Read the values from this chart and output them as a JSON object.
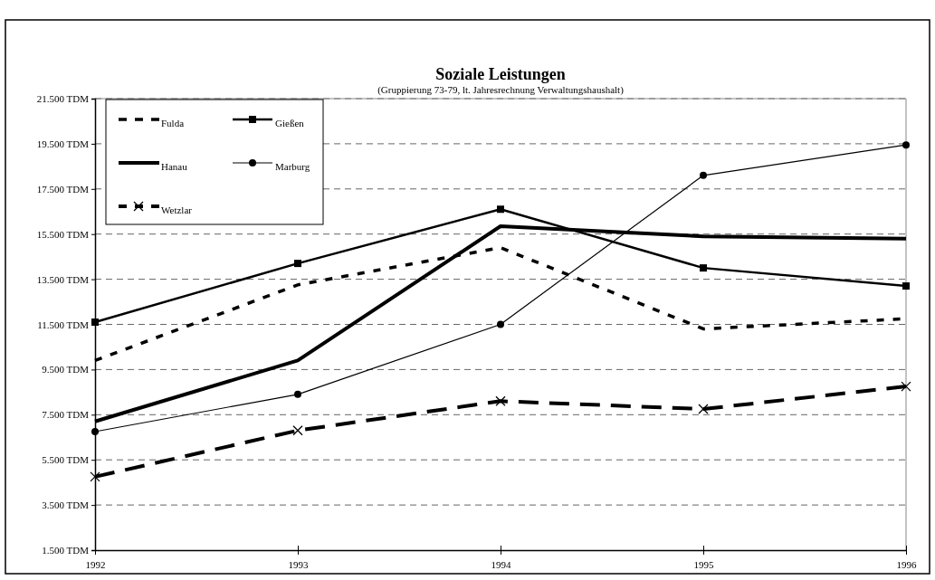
{
  "chart_data": {
    "type": "line",
    "title": "Soziale Leistungen",
    "subtitle": "(Gruppierung 73-79, lt. Jahresrechnung Verwaltungshaushalt)",
    "x": [
      1992,
      1993,
      1994,
      1995,
      1996
    ],
    "xlim": [
      1992,
      1996
    ],
    "xticks": [
      1992,
      1993,
      1994,
      1995,
      1996
    ],
    "ylim": [
      1500,
      21500
    ],
    "yticks": [
      {
        "value": 1500,
        "label": "1.500 TDM"
      },
      {
        "value": 3500,
        "label": "3.500 TDM"
      },
      {
        "value": 5500,
        "label": "5.500 TDM"
      },
      {
        "value": 7500,
        "label": "7.500 TDM"
      },
      {
        "value": 9500,
        "label": "9.500 TDM"
      },
      {
        "value": 11500,
        "label": "11.500 TDM"
      },
      {
        "value": 13500,
        "label": "13.500 TDM"
      },
      {
        "value": 15500,
        "label": "15.500 TDM"
      },
      {
        "value": 17500,
        "label": "17.500 TDM"
      },
      {
        "value": 19500,
        "label": "19.500 TDM"
      },
      {
        "value": 21500,
        "label": "21.500 TDM"
      }
    ],
    "grid": "y",
    "legend": "top left",
    "series": [
      {
        "name": "Fulda",
        "color": "#000000",
        "line_style": "dashed",
        "marker": "none",
        "values": [
          9900,
          13250,
          14900,
          11300,
          11750
        ]
      },
      {
        "name": "Gießen",
        "color": "#000000",
        "line_style": "solid",
        "marker": "square",
        "values": [
          11600,
          14200,
          16600,
          14000,
          13200
        ]
      },
      {
        "name": "Hanau",
        "color": "#000000",
        "line_style": "solid",
        "marker": "none",
        "values": [
          7200,
          9900,
          15850,
          15400,
          15300
        ]
      },
      {
        "name": "Marburg",
        "color": "#000000",
        "line_style": "solid",
        "marker": "circle",
        "values": [
          6750,
          8400,
          11500,
          18100,
          19450
        ]
      },
      {
        "name": "Wetzlar",
        "color": "#000000",
        "line_style": "dashed",
        "marker": "cross",
        "values": [
          4750,
          6800,
          8100,
          7750,
          8750
        ]
      }
    ]
  }
}
